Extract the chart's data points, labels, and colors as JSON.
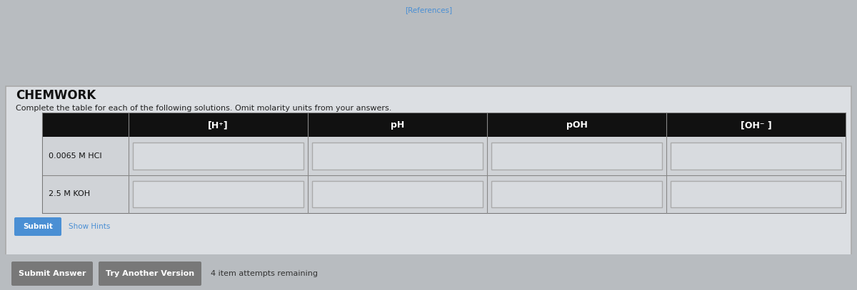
{
  "title": "CHEMWORK",
  "subtitle": "Complete the table for each of the following solutions. Omit molarity units from your answers.",
  "references_text": "[References]",
  "header_cols": [
    "[H⁺]",
    "pH",
    "pOH",
    "[OH⁻ ]"
  ],
  "row_labels": [
    "0.0065 M HCI",
    "2.5 M KOH"
  ],
  "page_bg_color": "#b8bcc0",
  "outer_panel_bg": "#dcdfe3",
  "outer_panel_edge": "#aaaaaa",
  "table_outer_bg": "#c8cbcf",
  "table_outer_edge": "#888888",
  "table_header_bg": "#111111",
  "header_text_color": "#ffffff",
  "row_bg_color": "#d0d3d7",
  "input_box_color": "#d8dbdf",
  "input_box_border": "#aaaaaa",
  "row_label_color": "#111111",
  "title_color": "#111111",
  "subtitle_color": "#222222",
  "submit_btn_color": "#4a8fd4",
  "submit_btn_text": "Submit",
  "show_hints_text": "Show Hints",
  "show_hints_color": "#4a8fd4",
  "bottom_btn1_text": "Submit Answer",
  "bottom_btn2_text": "Try Another Version",
  "bottom_btn_color": "#787878",
  "attempts_text": "4 item attempts remaining",
  "references_color": "#4a8fd4",
  "title_fontsize": 12,
  "subtitle_fontsize": 8,
  "header_fontsize": 9,
  "row_label_fontsize": 8,
  "btn_fontsize": 8,
  "attempts_fontsize": 8
}
